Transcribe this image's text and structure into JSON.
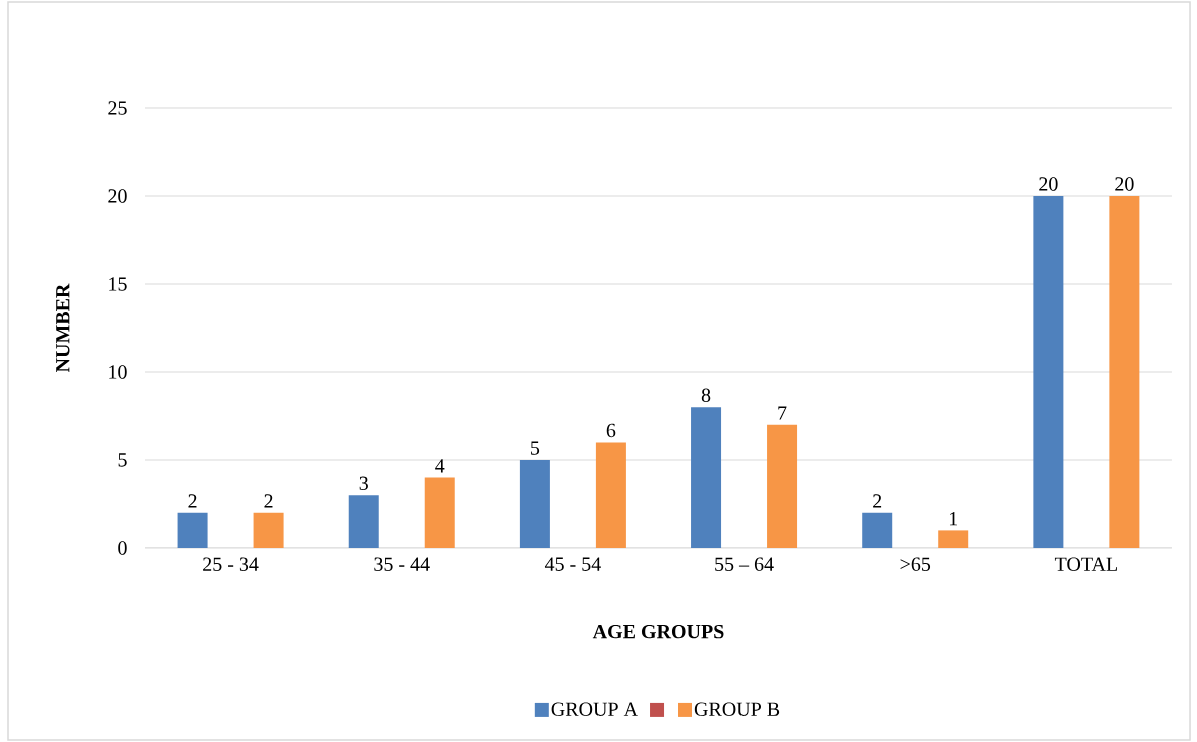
{
  "chart_data": {
    "type": "bar",
    "xlabel": "AGE GROUPS",
    "ylabel": "NUMBER",
    "categories": [
      "25 - 34",
      "35 - 44",
      "45 - 54",
      "55 – 64",
      ">65",
      "TOTAL"
    ],
    "series": [
      {
        "name": "GROUP  A",
        "color": "#4f81bd",
        "values": [
          2,
          3,
          5,
          8,
          2,
          20
        ]
      },
      {
        "color": "#c0504d",
        "values": [
          null,
          null,
          null,
          null,
          null,
          null
        ]
      },
      {
        "name": "GROUP B",
        "color": "#f79646",
        "values": [
          2,
          4,
          6,
          7,
          1,
          20
        ]
      }
    ],
    "ylim": [
      0,
      25
    ],
    "yticks": [
      0,
      5,
      10,
      15,
      20,
      25
    ],
    "grid": "y",
    "data_labels": true,
    "legend": "bottom"
  }
}
